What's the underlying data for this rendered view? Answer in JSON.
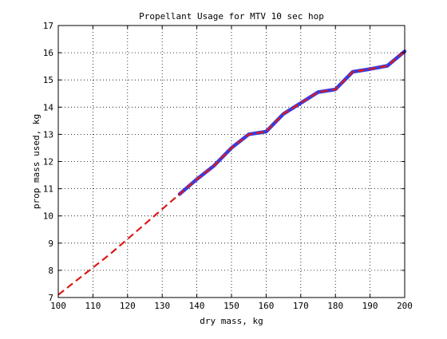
{
  "chart_data": {
    "type": "line",
    "title": "Propellant Usage for MTV 10 sec hop",
    "xlabel": "dry mass, kg",
    "ylabel": "prop mass used, kg",
    "xlim": [
      100,
      200
    ],
    "ylim": [
      7,
      17
    ],
    "xticks": [
      100,
      110,
      120,
      130,
      140,
      150,
      160,
      170,
      180,
      190,
      200
    ],
    "yticks": [
      7,
      8,
      9,
      10,
      11,
      12,
      13,
      14,
      15,
      16,
      17
    ],
    "grid": true,
    "series": [
      {
        "style": "solid",
        "color": "#3a3adf",
        "x": [
          135,
          140,
          145,
          150,
          155,
          160,
          165,
          170,
          175,
          180,
          185,
          190,
          195,
          200
        ],
        "y": [
          10.8,
          11.35,
          11.85,
          12.5,
          13.0,
          13.1,
          13.75,
          14.15,
          14.55,
          14.65,
          15.3,
          15.4,
          15.52,
          16.05
        ]
      },
      {
        "style": "dashed",
        "color": "#dd1a1a",
        "x": [
          100,
          105,
          110,
          115,
          120,
          125,
          130,
          135,
          140,
          145,
          150,
          155,
          160,
          165,
          170,
          175,
          180,
          185,
          190,
          195,
          200
        ],
        "y": [
          7.1,
          7.6,
          8.1,
          8.6,
          9.15,
          9.7,
          10.25,
          10.8,
          11.35,
          11.85,
          12.5,
          13.0,
          13.1,
          13.75,
          14.15,
          14.55,
          14.65,
          15.3,
          15.4,
          15.52,
          16.05
        ]
      }
    ]
  }
}
